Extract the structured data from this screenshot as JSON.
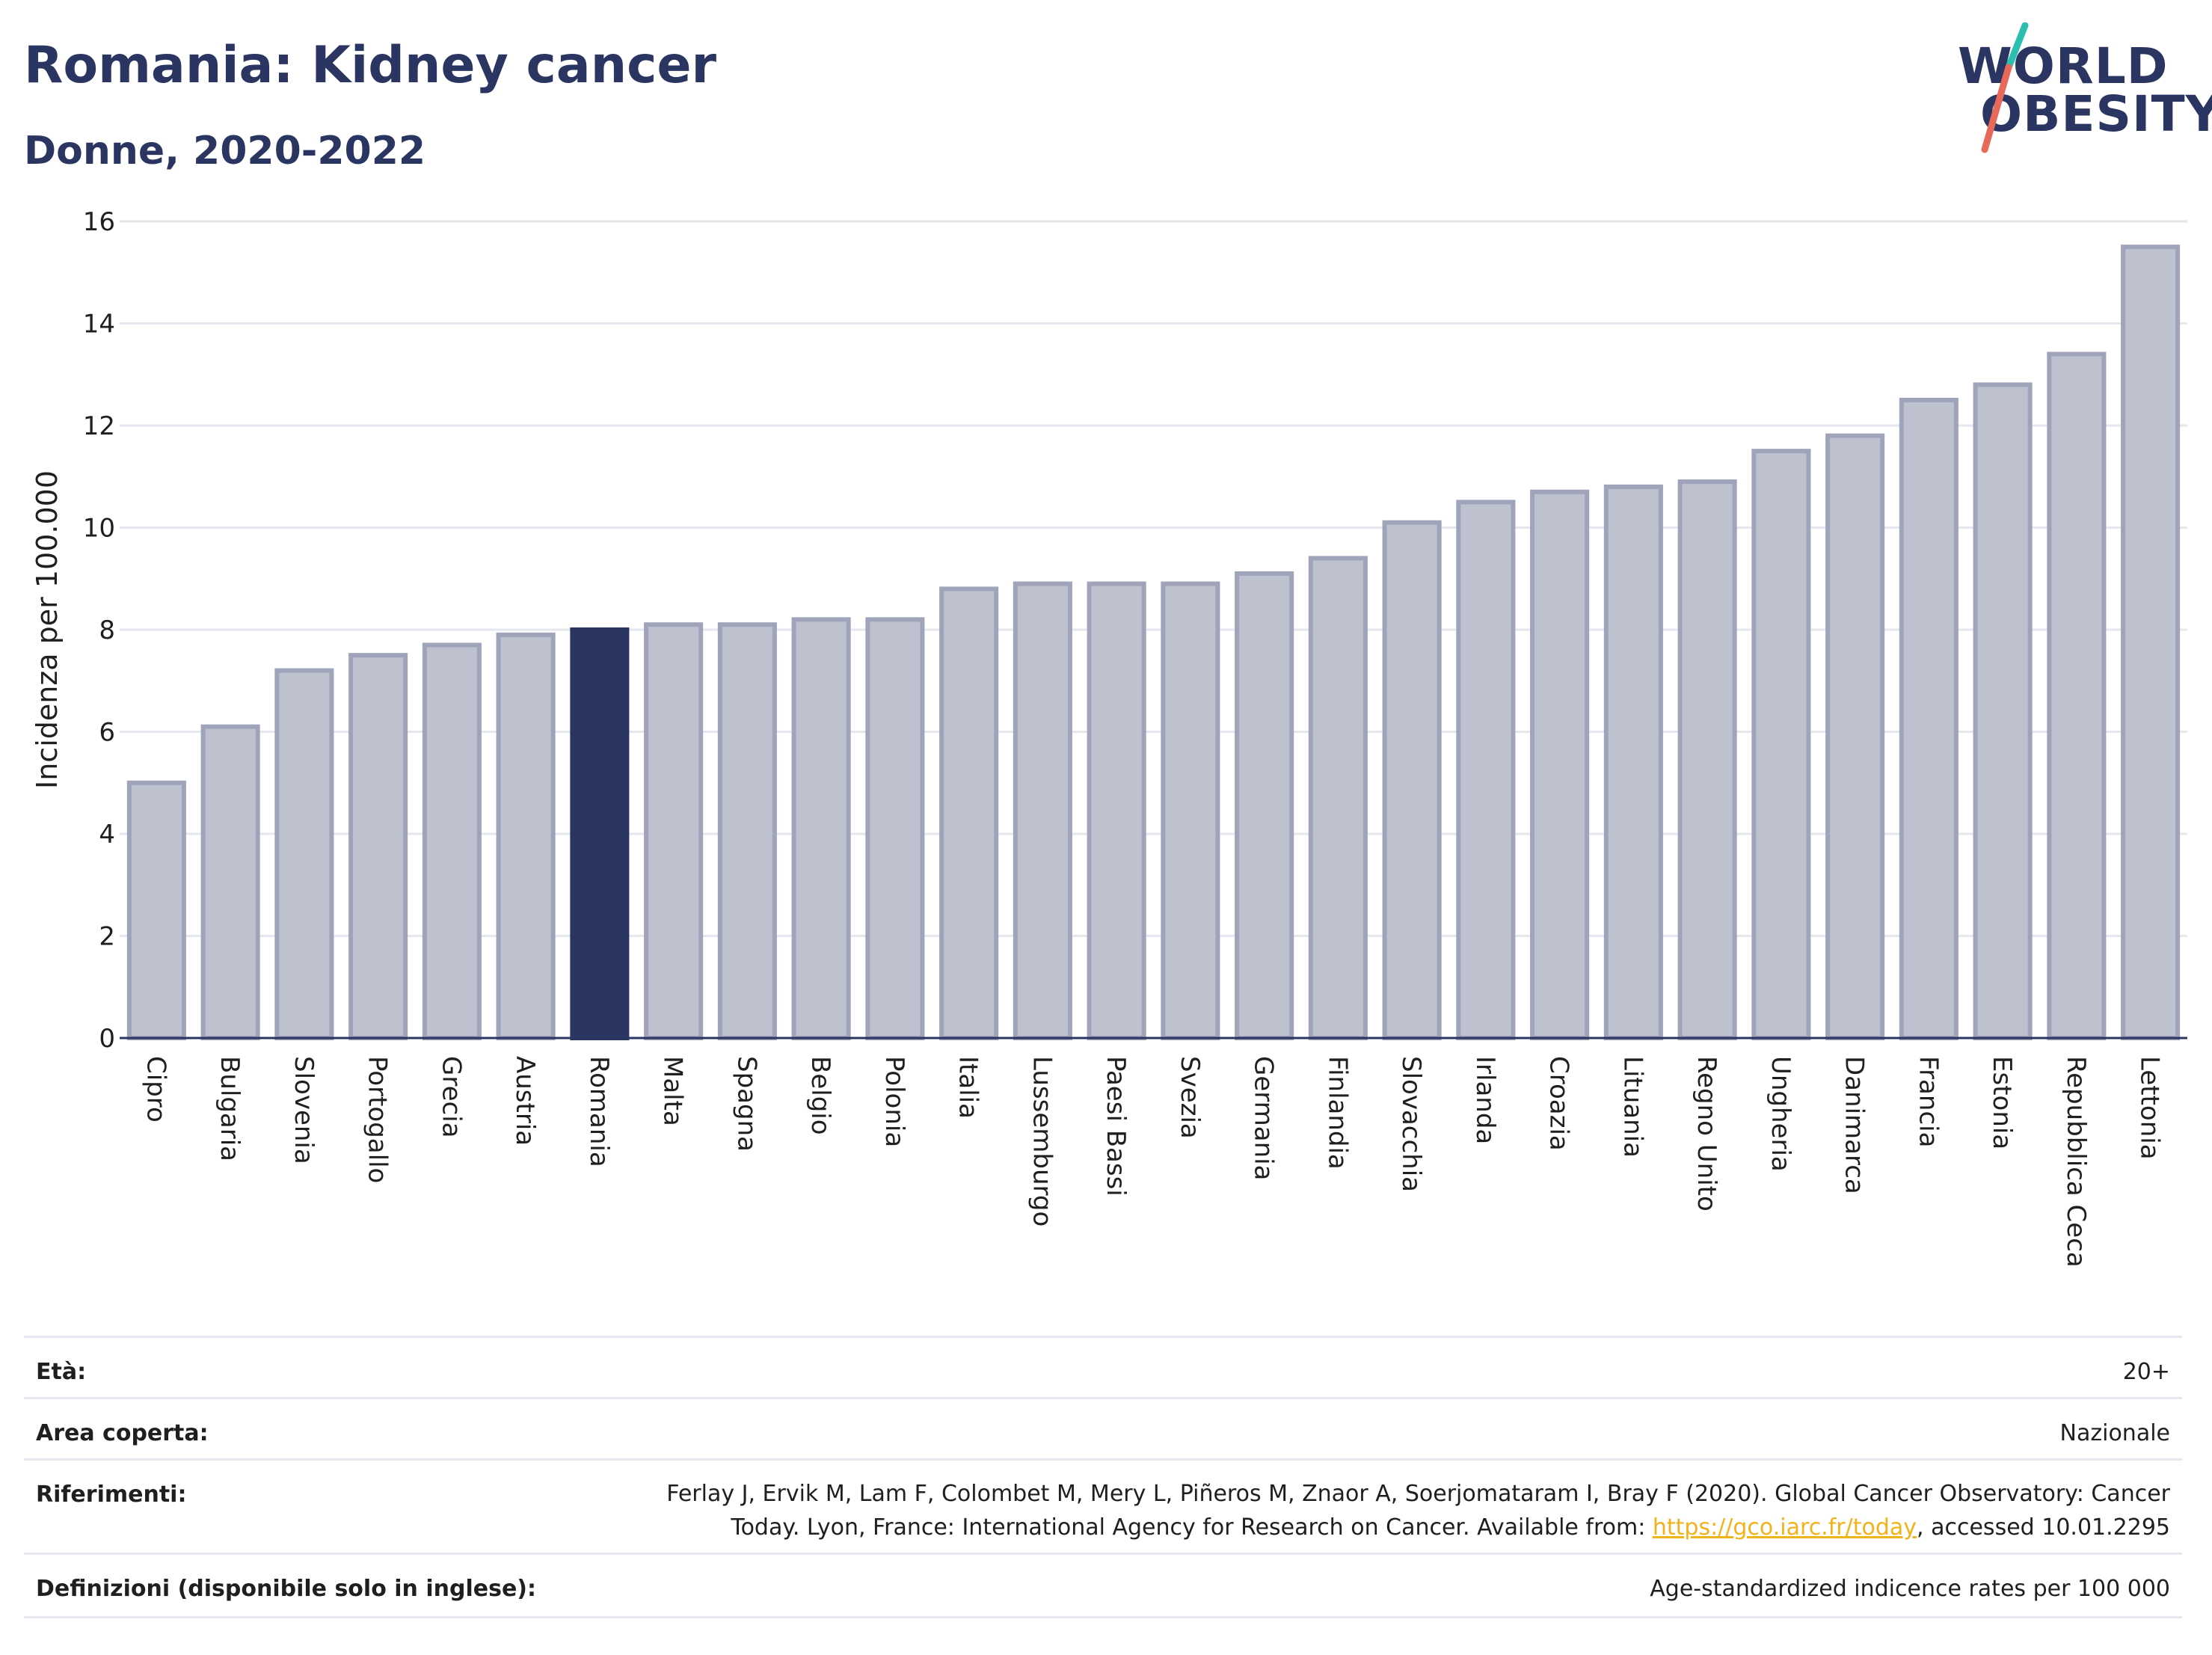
{
  "header": {
    "title": "Romania: Kidney cancer",
    "subtitle": "Donne, 2020-2022"
  },
  "logo": {
    "line1": "WORLD",
    "line2": "OBESITY",
    "accent_colors": [
      "#2bbfb0",
      "#e8685a"
    ]
  },
  "chart_data": {
    "type": "bar",
    "title": "",
    "xlabel": "",
    "ylabel": "Incidenza per 100.000",
    "ylim": [
      0,
      16
    ],
    "yticks": [
      0,
      2,
      4,
      6,
      8,
      10,
      12,
      14,
      16
    ],
    "grid": true,
    "highlight": "Romania",
    "colors": {
      "bar": "#bec1ce",
      "bar_border": "#9fa4ba",
      "highlight": "#2b3561",
      "grid": "#e6e7ee",
      "axis": "#2b3561"
    },
    "categories": [
      "Cipro",
      "Bulgaria",
      "Slovenia",
      "Portogallo",
      "Grecia",
      "Austria",
      "Romania",
      "Malta",
      "Spagna",
      "Belgio",
      "Polonia",
      "Italia",
      "Lussemburgo",
      "Paesi Bassi",
      "Svezia",
      "Germania",
      "Finlandia",
      "Slovacchia",
      "Irlanda",
      "Croazia",
      "Lituania",
      "Regno Unito",
      "Ungheria",
      "Danimarca",
      "Francia",
      "Estonia",
      "Repubblica Ceca",
      "Lettonia"
    ],
    "values": [
      5.0,
      6.1,
      7.2,
      7.5,
      7.7,
      7.9,
      8.0,
      8.1,
      8.1,
      8.2,
      8.2,
      8.8,
      8.9,
      8.9,
      8.9,
      9.1,
      9.4,
      10.1,
      10.5,
      10.7,
      10.8,
      10.9,
      11.5,
      11.8,
      12.5,
      12.8,
      13.4,
      15.5
    ]
  },
  "meta": {
    "age": {
      "label": "Età:",
      "value": "20+"
    },
    "area": {
      "label": "Area coperta:",
      "value": "Nazionale"
    },
    "references": {
      "label": "Riferimenti:",
      "text_before": "Ferlay J, Ervik M, Lam F, Colombet M, Mery L, Piñeros M, Znaor A, Soerjomataram I, Bray F (2020). Global Cancer Observatory: Cancer Today. Lyon, France: International Agency for Research on Cancer. Available from: ",
      "link": "https://gco.iarc.fr/today",
      "text_after": ", accessed 10.01.2295"
    },
    "definitions": {
      "label": "Definizioni (disponibile solo in inglese):",
      "value": "Age-standardized indicence rates per 100 000"
    }
  }
}
